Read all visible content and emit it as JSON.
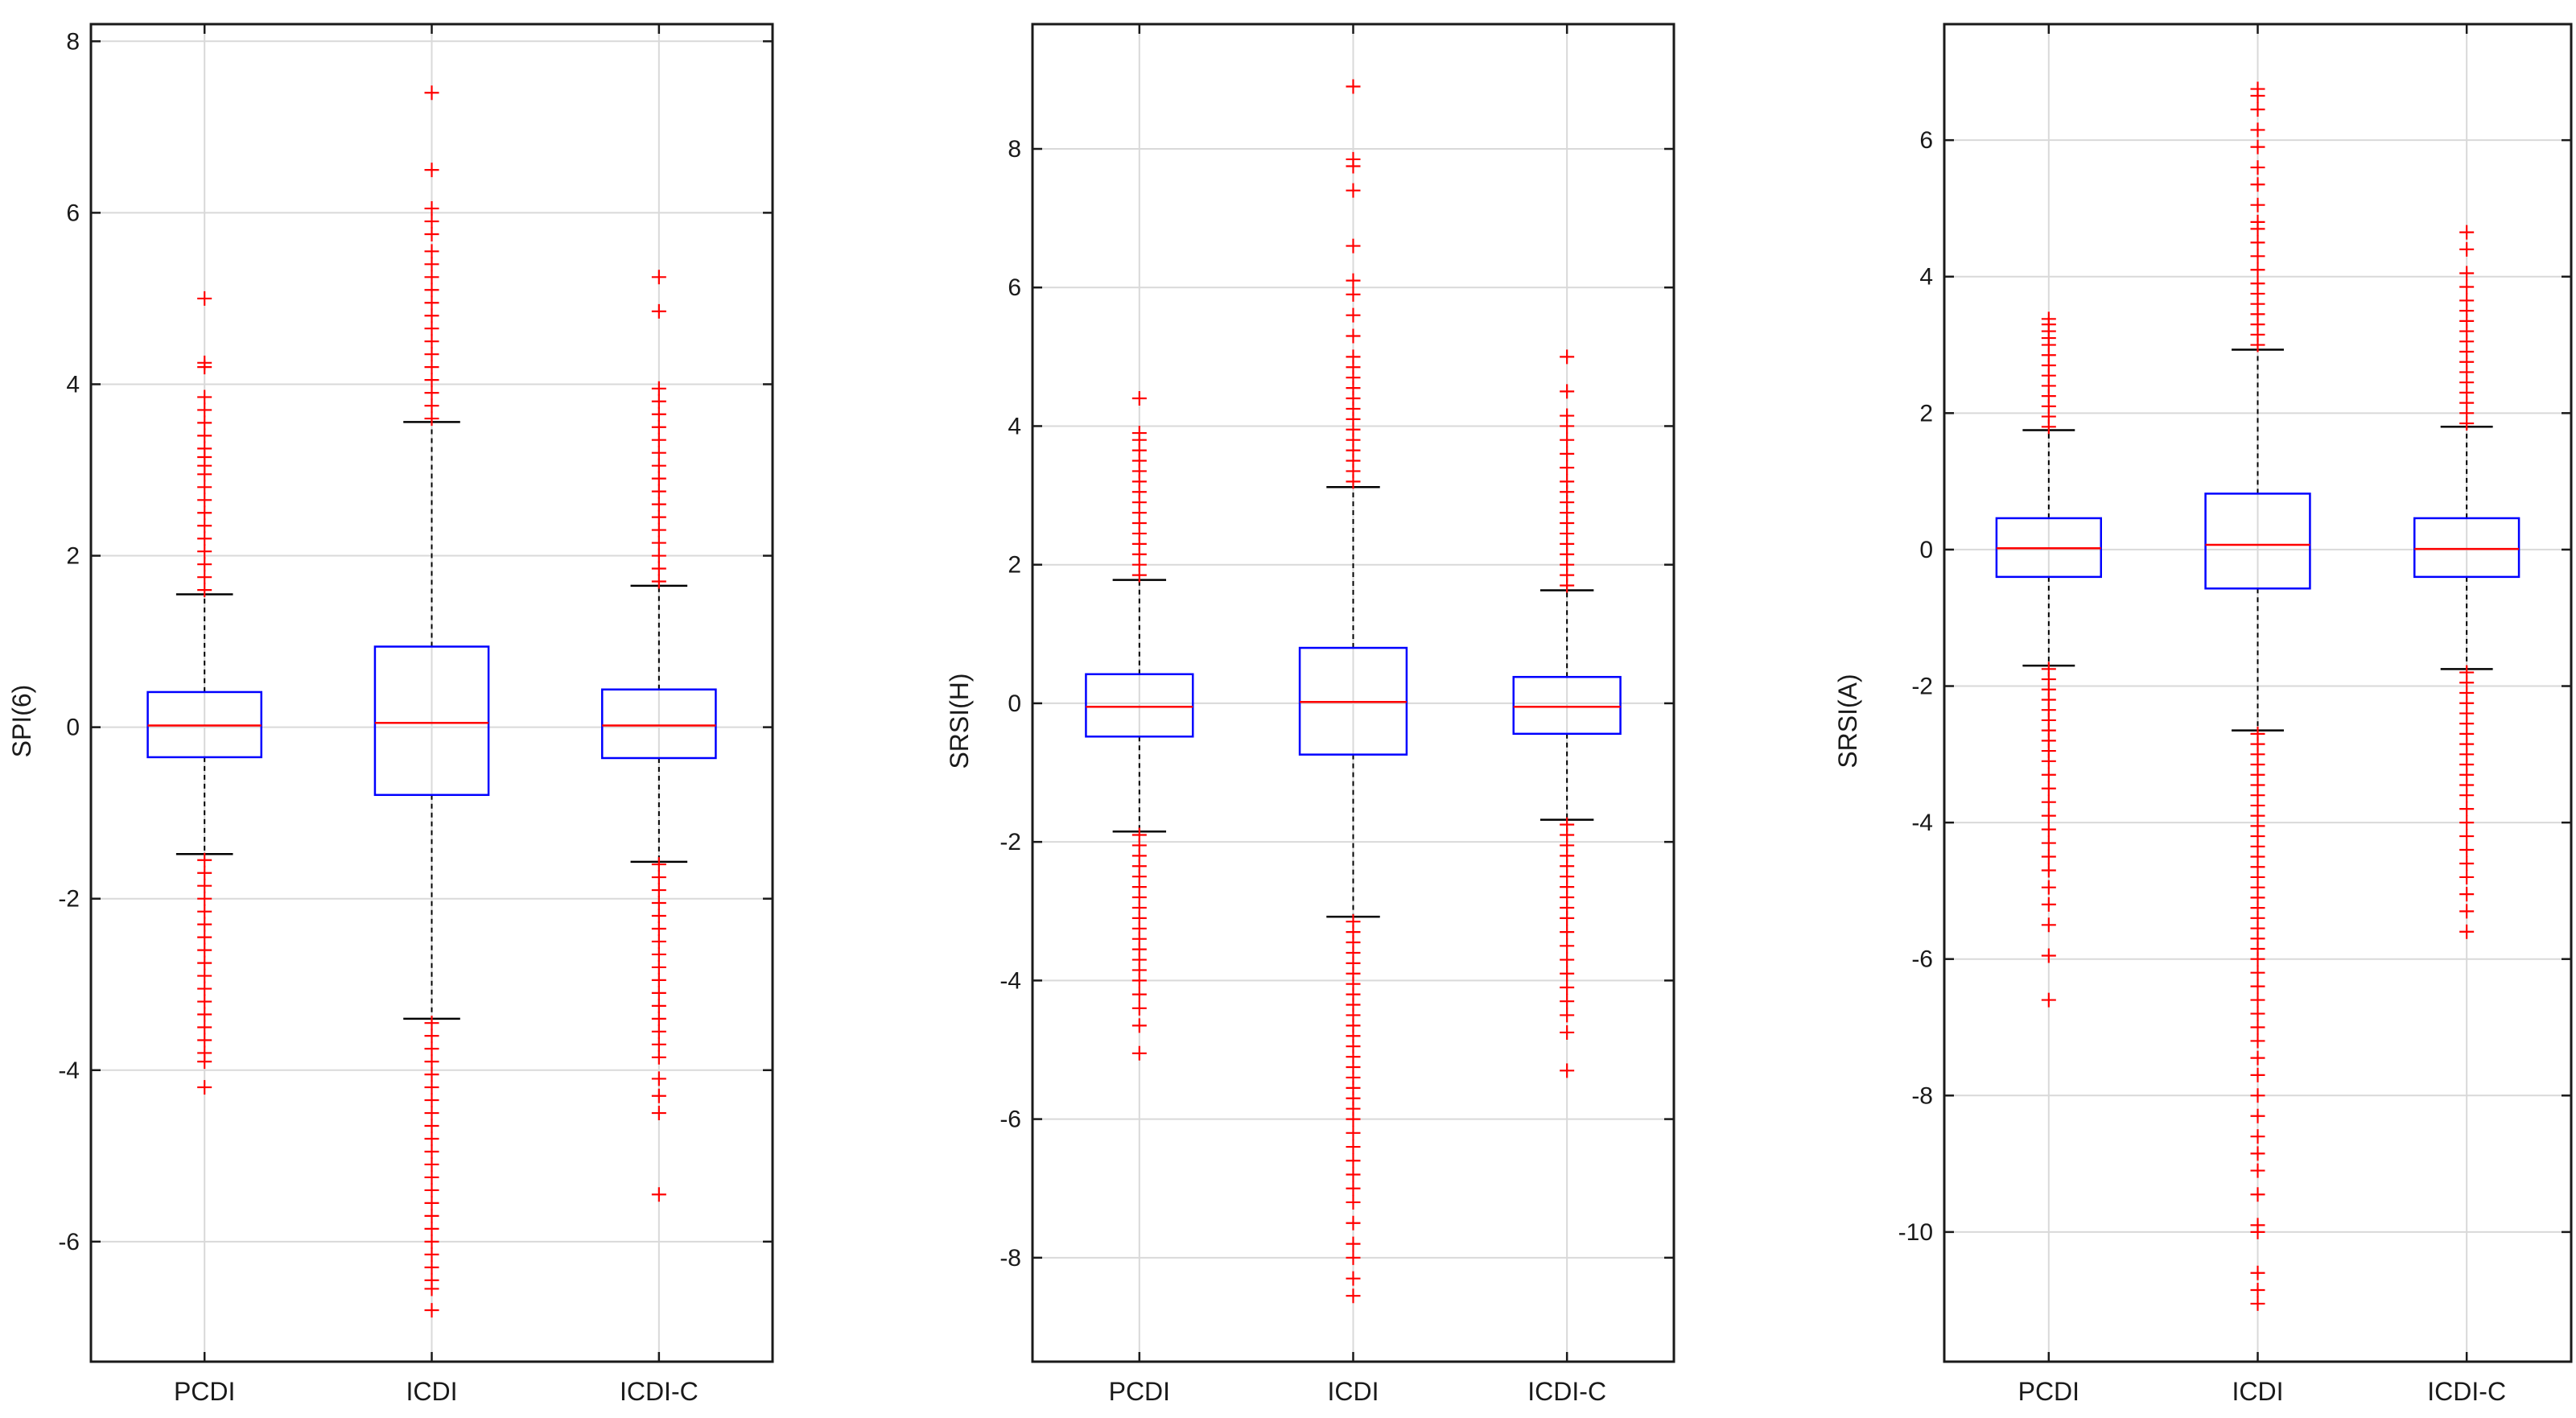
{
  "colors": {
    "box": "#0000ff",
    "median": "#ff0000",
    "outlier": "#ff0000",
    "whisker": "#000000",
    "grid": "#d9d9d9",
    "axis": "#1a1a1a"
  },
  "chart_data": [
    {
      "type": "boxplot",
      "ylabel": "SPI(6)",
      "ylim": [
        -7.4,
        8.2
      ],
      "yticks": [
        -6,
        -4,
        -2,
        0,
        2,
        4,
        6,
        8
      ],
      "ytick_labels": [
        "-6",
        "-4",
        "-2",
        "0",
        "2",
        "4",
        "6",
        "8"
      ],
      "grid": true,
      "categories": [
        "PCDI",
        "ICDI",
        "ICDI-C"
      ],
      "boxes": [
        {
          "name": "PCDI",
          "whisker_low": -1.48,
          "q1": -0.35,
          "median": 0.02,
          "q3": 0.41,
          "whisker_high": 1.55,
          "outliers_high": [
            1.6,
            1.75,
            1.9,
            2.05,
            2.2,
            2.35,
            2.5,
            2.65,
            2.8,
            2.95,
            3.05,
            3.15,
            3.25,
            3.4,
            3.55,
            3.7,
            3.85,
            4.2,
            4.25,
            5.0
          ],
          "outliers_low": [
            -1.55,
            -1.7,
            -1.85,
            -2.0,
            -2.15,
            -2.3,
            -2.45,
            -2.6,
            -2.75,
            -2.9,
            -3.05,
            -3.2,
            -3.35,
            -3.5,
            -3.65,
            -3.8,
            -3.9,
            -4.2
          ]
        },
        {
          "name": "ICDI",
          "whisker_low": -3.4,
          "q1": -0.79,
          "median": 0.05,
          "q3": 0.94,
          "whisker_high": 3.56,
          "outliers_high": [
            3.6,
            3.75,
            3.9,
            4.05,
            4.2,
            4.35,
            4.5,
            4.65,
            4.8,
            4.95,
            5.1,
            5.25,
            5.4,
            5.55,
            5.75,
            5.9,
            6.05,
            6.5,
            7.4
          ],
          "outliers_low": [
            -3.45,
            -3.6,
            -3.75,
            -3.9,
            -4.05,
            -4.2,
            -4.35,
            -4.5,
            -4.65,
            -4.8,
            -4.95,
            -5.1,
            -5.25,
            -5.4,
            -5.55,
            -5.7,
            -5.85,
            -6.0,
            -6.15,
            -6.3,
            -6.45,
            -6.55,
            -6.8
          ]
        },
        {
          "name": "ICDI-C",
          "whisker_low": -1.57,
          "q1": -0.36,
          "median": 0.02,
          "q3": 0.44,
          "whisker_high": 1.65,
          "outliers_high": [
            1.7,
            1.85,
            2.0,
            2.15,
            2.3,
            2.45,
            2.6,
            2.75,
            2.9,
            3.05,
            3.2,
            3.35,
            3.5,
            3.65,
            3.8,
            3.95,
            4.85,
            5.25
          ],
          "outliers_low": [
            -1.6,
            -1.75,
            -1.9,
            -2.05,
            -2.2,
            -2.35,
            -2.5,
            -2.65,
            -2.8,
            -2.95,
            -3.1,
            -3.25,
            -3.4,
            -3.55,
            -3.7,
            -3.85,
            -4.1,
            -4.3,
            -4.5,
            -5.45
          ]
        }
      ]
    },
    {
      "type": "boxplot",
      "ylabel": "SRSI(H)",
      "ylim": [
        -9.5,
        9.8
      ],
      "yticks": [
        -8,
        -6,
        -4,
        -2,
        0,
        2,
        4,
        6,
        8
      ],
      "ytick_labels": [
        "-8",
        "-6",
        "-4",
        "-2",
        "0",
        "2",
        "4",
        "6",
        "8"
      ],
      "grid": true,
      "categories": [
        "PCDI",
        "ICDI",
        "ICDI-C"
      ],
      "boxes": [
        {
          "name": "PCDI",
          "whisker_low": -1.85,
          "q1": -0.48,
          "median": -0.05,
          "q3": 0.42,
          "whisker_high": 1.78,
          "outliers_high": [
            1.85,
            2.0,
            2.15,
            2.3,
            2.45,
            2.6,
            2.75,
            2.9,
            3.05,
            3.2,
            3.35,
            3.5,
            3.65,
            3.8,
            3.9,
            4.4
          ],
          "outliers_low": [
            -1.9,
            -2.05,
            -2.2,
            -2.35,
            -2.5,
            -2.65,
            -2.8,
            -2.95,
            -3.1,
            -3.25,
            -3.4,
            -3.55,
            -3.7,
            -3.85,
            -4.0,
            -4.2,
            -4.4,
            -4.65,
            -5.05
          ]
        },
        {
          "name": "ICDI",
          "whisker_low": -3.08,
          "q1": -0.74,
          "median": 0.02,
          "q3": 0.8,
          "whisker_high": 3.12,
          "outliers_high": [
            3.2,
            3.35,
            3.5,
            3.65,
            3.8,
            3.95,
            4.1,
            4.25,
            4.4,
            4.55,
            4.7,
            4.85,
            5.0,
            5.3,
            5.6,
            5.9,
            6.1,
            6.6,
            7.4,
            7.75,
            7.85,
            8.9
          ],
          "outliers_low": [
            -3.15,
            -3.3,
            -3.45,
            -3.6,
            -3.75,
            -3.9,
            -4.05,
            -4.2,
            -4.35,
            -4.5,
            -4.65,
            -4.8,
            -4.95,
            -5.1,
            -5.25,
            -5.4,
            -5.55,
            -5.7,
            -5.85,
            -6.0,
            -6.2,
            -6.4,
            -6.6,
            -6.8,
            -7.0,
            -7.2,
            -7.5,
            -7.8,
            -8.0,
            -8.3,
            -8.55
          ]
        },
        {
          "name": "ICDI-C",
          "whisker_low": -1.68,
          "q1": -0.44,
          "median": -0.05,
          "q3": 0.38,
          "whisker_high": 1.63,
          "outliers_high": [
            1.7,
            1.85,
            2.0,
            2.15,
            2.3,
            2.45,
            2.6,
            2.75,
            2.9,
            3.05,
            3.2,
            3.4,
            3.6,
            3.8,
            4.0,
            4.15,
            4.5,
            5.0
          ],
          "outliers_low": [
            -1.75,
            -1.9,
            -2.05,
            -2.2,
            -2.35,
            -2.5,
            -2.65,
            -2.8,
            -2.95,
            -3.1,
            -3.3,
            -3.5,
            -3.7,
            -3.9,
            -4.1,
            -4.3,
            -4.5,
            -4.75,
            -5.3
          ]
        }
      ]
    },
    {
      "type": "boxplot",
      "ylabel": "SRSI(A)",
      "ylim": [
        -11.9,
        7.7
      ],
      "yticks": [
        -10,
        -8,
        -6,
        -4,
        -2,
        0,
        2,
        4,
        6
      ],
      "ytick_labels": [
        "-10",
        "-8",
        "-6",
        "-4",
        "-2",
        "0",
        "2",
        "4",
        "6"
      ],
      "grid": true,
      "categories": [
        "PCDI",
        "ICDI",
        "ICDI-C"
      ],
      "boxes": [
        {
          "name": "PCDI",
          "whisker_low": -1.7,
          "q1": -0.4,
          "median": 0.02,
          "q3": 0.46,
          "whisker_high": 1.75,
          "outliers_high": [
            1.8,
            1.95,
            2.1,
            2.25,
            2.4,
            2.55,
            2.7,
            2.85,
            3.0,
            3.1,
            3.2,
            3.3,
            3.38
          ],
          "outliers_low": [
            -1.75,
            -1.9,
            -2.05,
            -2.2,
            -2.35,
            -2.5,
            -2.65,
            -2.8,
            -2.95,
            -3.1,
            -3.3,
            -3.5,
            -3.7,
            -3.9,
            -4.1,
            -4.3,
            -4.5,
            -4.7,
            -4.95,
            -5.2,
            -5.5,
            -5.95,
            -6.6
          ]
        },
        {
          "name": "ICDI",
          "whisker_low": -2.65,
          "q1": -0.57,
          "median": 0.07,
          "q3": 0.82,
          "whisker_high": 2.93,
          "outliers_high": [
            3.0,
            3.15,
            3.3,
            3.45,
            3.6,
            3.75,
            3.9,
            4.1,
            4.3,
            4.5,
            4.7,
            4.8,
            5.05,
            5.35,
            5.6,
            5.9,
            6.15,
            6.45,
            6.65,
            6.75
          ],
          "outliers_low": [
            -2.7,
            -2.85,
            -3.0,
            -3.15,
            -3.3,
            -3.45,
            -3.6,
            -3.75,
            -3.9,
            -4.05,
            -4.2,
            -4.35,
            -4.5,
            -4.65,
            -4.8,
            -4.95,
            -5.1,
            -5.25,
            -5.4,
            -5.55,
            -5.7,
            -5.85,
            -6.0,
            -6.2,
            -6.4,
            -6.6,
            -6.8,
            -7.0,
            -7.2,
            -7.45,
            -7.7,
            -8.0,
            -8.3,
            -8.6,
            -8.85,
            -9.1,
            -9.45,
            -9.9,
            -10.0,
            -10.6,
            -10.85,
            -11.05
          ]
        },
        {
          "name": "ICDI-C",
          "whisker_low": -1.75,
          "q1": -0.4,
          "median": 0.01,
          "q3": 0.46,
          "whisker_high": 1.8,
          "outliers_high": [
            1.85,
            2.0,
            2.15,
            2.3,
            2.45,
            2.6,
            2.75,
            2.9,
            3.05,
            3.2,
            3.35,
            3.5,
            3.65,
            3.85,
            4.05,
            4.4,
            4.65
          ],
          "outliers_low": [
            -1.8,
            -1.95,
            -2.1,
            -2.25,
            -2.4,
            -2.55,
            -2.7,
            -2.85,
            -3.0,
            -3.15,
            -3.3,
            -3.45,
            -3.6,
            -3.8,
            -4.0,
            -4.2,
            -4.4,
            -4.6,
            -4.8,
            -5.05,
            -5.3,
            -5.6
          ]
        }
      ]
    }
  ]
}
